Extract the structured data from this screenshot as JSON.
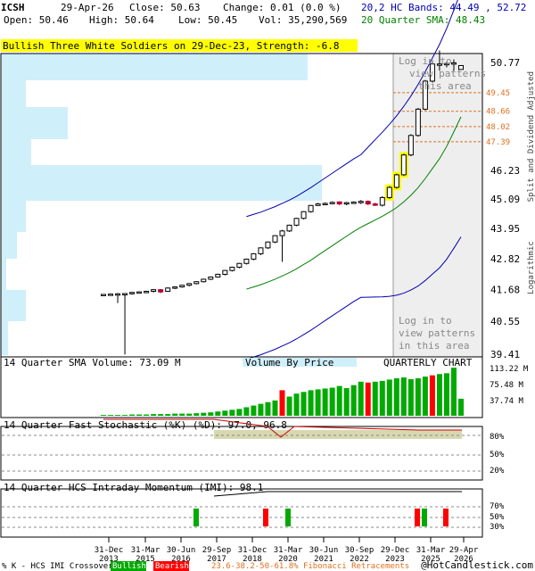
{
  "header": {
    "symbol": "ICSH",
    "date": "29-Apr-26",
    "close_label": "Close: 50.63",
    "change_label": "Change: 0.01 (0.0 %)",
    "open_label": "Open: 50.46",
    "high_label": "High: 50.64",
    "low_label": "Low: 50.45",
    "vol_label": "Vol: 35,290,569",
    "bands_label": "20,2 HC Bands: 44.49 , 52.72",
    "sma_label": "20 Quarter SMA: 48.43"
  },
  "pattern_banner": "Bullish Three White Soldiers on 29-Dec-23, Strength: -6.8",
  "overlay": {
    "login_text": [
      "Log in to",
      "view patterns",
      "in this area"
    ],
    "login_text_top": [
      "Log in to",
      "view patterns",
      "this area"
    ]
  },
  "right_axis_title_1": "Split and Dividend Adjusted",
  "right_axis_title_2": "Logarithmic",
  "price_ticks": [
    "50.77",
    "46.23",
    "45.09",
    "43.95",
    "42.82",
    "41.68",
    "40.55",
    "39.41"
  ],
  "fib_ticks": [
    "49.45",
    "48.66",
    "48.02",
    "47.39"
  ],
  "volume_panel": {
    "title": "14 Quarter SMA Volume: 73.09 M",
    "center_label": "Volume By Price",
    "right_label": "QUARTERLY CHART",
    "ticks": [
      "113.22 M",
      "75.48 M",
      "37.74 M"
    ]
  },
  "stoch_panel": {
    "title": "14 Quarter Fast Stochastic (%K) (%D): 97.0, 96.8",
    "ticks": [
      "80%",
      "50%",
      "20%"
    ]
  },
  "imi_panel": {
    "title": "14 Quarter HCS Intraday Momentum (IMI): 98.1",
    "ticks": [
      "70%",
      "50%",
      "30%"
    ]
  },
  "x_labels": [
    "31-Dec\n2013",
    "31-Mar\n2015",
    "30-Jun\n2016",
    "29-Sep\n2017",
    "31-Dec\n2018",
    "31-Mar\n2020",
    "30-Jun\n2021",
    "30-Sep\n2022",
    "29-Dec\n2023",
    "31-Mar\n2025",
    "29-Apr\n2026"
  ],
  "footer": {
    "legend_prefix": "% K - HCS IMI Crossover,",
    "bullish": "Bullish",
    "bearish": "Bearish",
    "fib_label": "23.6-38.2-50-61.8% Fibonacci Retracements",
    "copyright": "@HotCandlestick.com"
  },
  "colors": {
    "up": "#000000",
    "down": "#b00030",
    "sma": "#008000",
    "band": "#0000b0",
    "vbp": "#cfeffa",
    "vol_up": "#00aa00",
    "vol_down": "#ff0000",
    "banner_bg": "#ffff00",
    "highlight": "#ffff00",
    "stoch_fill": "#d8d8b0",
    "fib": "#e07020"
  },
  "chart_data": {
    "type": "candlestick",
    "scale": "log",
    "ylim": [
      39.41,
      51.3
    ],
    "x_quarters": [
      "2013Q4",
      "2014Q1",
      "2014Q2",
      "2014Q3",
      "2014Q4",
      "2015Q1",
      "2015Q2",
      "2015Q3",
      "2015Q4",
      "2016Q1",
      "2016Q2",
      "2016Q3",
      "2016Q4",
      "2017Q1",
      "2017Q2",
      "2017Q3",
      "2017Q4",
      "2018Q1",
      "2018Q2",
      "2018Q3",
      "2018Q4",
      "2019Q1",
      "2019Q2",
      "2019Q3",
      "2019Q4",
      "2020Q1",
      "2020Q2",
      "2020Q3",
      "2020Q4",
      "2021Q1",
      "2021Q2",
      "2021Q3",
      "2021Q4",
      "2022Q1",
      "2022Q2",
      "2022Q3",
      "2022Q4",
      "2023Q1",
      "2023Q2",
      "2023Q3",
      "2023Q4",
      "2024Q1",
      "2024Q2",
      "2024Q3",
      "2024Q4",
      "2025Q1",
      "2025Q2",
      "2025Q3",
      "2025Q4",
      "2026Q1",
      "2026Q2"
    ],
    "ohlc": [
      [
        41.5,
        41.52,
        41.48,
        41.51
      ],
      [
        41.51,
        41.54,
        41.49,
        41.52
      ],
      [
        41.52,
        41.56,
        41.2,
        41.53
      ],
      [
        41.53,
        41.55,
        39.4,
        41.54
      ],
      [
        41.54,
        41.6,
        41.5,
        41.58
      ],
      [
        41.58,
        41.62,
        41.55,
        41.6
      ],
      [
        41.6,
        41.64,
        41.56,
        41.62
      ],
      [
        41.62,
        41.7,
        41.58,
        41.68
      ],
      [
        41.68,
        41.7,
        41.55,
        41.6
      ],
      [
        41.62,
        41.76,
        41.6,
        41.74
      ],
      [
        41.74,
        41.8,
        41.7,
        41.78
      ],
      [
        41.78,
        41.86,
        41.75,
        41.84
      ],
      [
        41.84,
        41.92,
        41.8,
        41.9
      ],
      [
        41.9,
        41.99,
        41.87,
        41.97
      ],
      [
        41.97,
        42.08,
        41.94,
        42.06
      ],
      [
        42.06,
        42.16,
        42.03,
        42.14
      ],
      [
        42.14,
        42.26,
        42.12,
        42.24
      ],
      [
        42.24,
        42.4,
        42.2,
        42.38
      ],
      [
        42.38,
        42.52,
        42.34,
        42.5
      ],
      [
        42.5,
        42.66,
        42.46,
        42.64
      ],
      [
        42.64,
        42.82,
        42.6,
        42.8
      ],
      [
        42.8,
        43.02,
        42.76,
        43.0
      ],
      [
        43.0,
        43.24,
        42.95,
        43.22
      ],
      [
        43.22,
        43.46,
        43.18,
        43.44
      ],
      [
        43.44,
        43.7,
        43.4,
        43.68
      ],
      [
        43.68,
        43.9,
        42.7,
        43.86
      ],
      [
        43.86,
        44.1,
        43.82,
        44.08
      ],
      [
        44.08,
        44.36,
        44.04,
        44.34
      ],
      [
        44.34,
        44.62,
        44.3,
        44.6
      ],
      [
        44.6,
        44.86,
        44.56,
        44.84
      ],
      [
        44.84,
        44.94,
        44.82,
        44.9
      ],
      [
        44.9,
        44.96,
        44.88,
        44.92
      ],
      [
        44.92,
        45.0,
        44.9,
        44.96
      ],
      [
        44.98,
        45.0,
        44.85,
        44.9
      ],
      [
        44.9,
        44.98,
        44.85,
        44.95
      ],
      [
        44.95,
        45.0,
        44.9,
        44.97
      ],
      [
        44.97,
        45.05,
        44.9,
        45.0
      ],
      [
        45.0,
        45.04,
        44.85,
        44.9
      ],
      [
        44.9,
        44.95,
        44.82,
        44.85
      ],
      [
        44.85,
        45.2,
        44.8,
        45.15
      ],
      [
        45.15,
        45.6,
        45.1,
        45.55
      ],
      [
        45.55,
        46.1,
        45.5,
        46.05
      ],
      [
        46.05,
        46.9,
        46.0,
        46.85
      ],
      [
        46.85,
        47.7,
        46.8,
        47.65
      ],
      [
        47.65,
        48.8,
        47.6,
        48.75
      ],
      [
        48.75,
        50.0,
        48.7,
        49.95
      ],
      [
        49.95,
        50.8,
        49.9,
        50.7
      ],
      [
        50.7,
        51.3,
        50.4,
        50.7
      ],
      [
        50.7,
        50.78,
        50.55,
        50.72
      ],
      [
        50.72,
        50.9,
        50.4,
        50.75
      ],
      [
        50.46,
        50.64,
        50.45,
        50.63
      ]
    ],
    "sma20": [
      null,
      null,
      null,
      null,
      null,
      null,
      null,
      null,
      null,
      null,
      null,
      null,
      null,
      null,
      null,
      null,
      null,
      null,
      null,
      null,
      41.7,
      41.78,
      41.86,
      41.96,
      42.06,
      42.18,
      42.3,
      42.44,
      42.6,
      42.76,
      42.94,
      43.12,
      43.3,
      43.48,
      43.66,
      43.84,
      44.0,
      44.14,
      44.28,
      44.42,
      44.58,
      44.76,
      44.98,
      45.24,
      45.54,
      45.9,
      46.3,
      46.7,
      47.2,
      47.8,
      48.43
    ]
  }
}
